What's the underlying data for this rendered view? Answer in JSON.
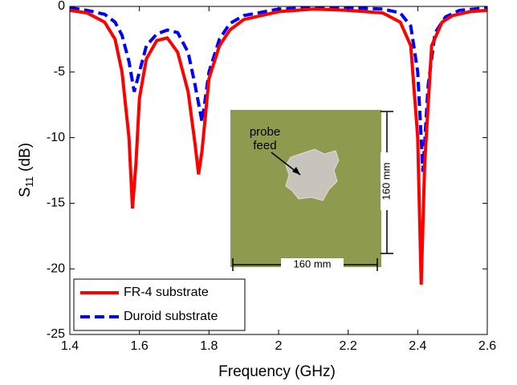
{
  "chart_data": {
    "type": "line",
    "x_label": "Frequency (GHz)",
    "y_label": [
      "S",
      "11",
      "(dB)"
    ],
    "xlim": [
      1.4,
      2.6
    ],
    "ylim": [
      -25,
      0
    ],
    "xticks": [
      1.4,
      1.6,
      1.8,
      2,
      2.2,
      2.4,
      2.6
    ],
    "yticks": [
      -25,
      -20,
      -15,
      -10,
      -5,
      0
    ],
    "legend": "lower left",
    "series": [
      {
        "name": "FR-4 substrate",
        "color": "#ff0000",
        "line_style": "solid",
        "x": [
          1.4,
          1.45,
          1.5,
          1.53,
          1.55,
          1.57,
          1.58,
          1.59,
          1.6,
          1.62,
          1.65,
          1.68,
          1.71,
          1.74,
          1.76,
          1.77,
          1.78,
          1.8,
          1.83,
          1.86,
          1.9,
          2.0,
          2.1,
          2.2,
          2.3,
          2.35,
          2.38,
          2.4,
          2.41,
          2.42,
          2.44,
          2.47,
          2.5,
          2.55,
          2.6
        ],
        "values": [
          -0.3,
          -0.5,
          -1.2,
          -2.5,
          -5,
          -10,
          -15.4,
          -12,
          -7,
          -4,
          -2.6,
          -2.4,
          -3.5,
          -6.5,
          -10.5,
          -12.8,
          -11,
          -5.5,
          -3,
          -1.8,
          -1,
          -0.4,
          -0.2,
          -0.3,
          -0.5,
          -1.2,
          -3,
          -10,
          -21.2,
          -12,
          -3,
          -1.2,
          -0.7,
          -0.4,
          -0.3
        ]
      },
      {
        "name": "Duroid substrate",
        "color": "#0000ff",
        "line_style": "dashed",
        "x": [
          1.4,
          1.45,
          1.5,
          1.53,
          1.55,
          1.57,
          1.585,
          1.6,
          1.62,
          1.65,
          1.68,
          1.71,
          1.74,
          1.76,
          1.78,
          1.8,
          1.83,
          1.86,
          1.9,
          2.0,
          2.1,
          2.2,
          2.3,
          2.35,
          2.38,
          2.4,
          2.415,
          2.43,
          2.45,
          2.48,
          2.52,
          2.6
        ],
        "values": [
          -0.1,
          -0.3,
          -0.6,
          -1.2,
          -2.2,
          -4.2,
          -6.5,
          -5,
          -3,
          -2.1,
          -1.8,
          -2,
          -3.5,
          -6,
          -8.8,
          -5,
          -2.5,
          -1.3,
          -0.7,
          -0.2,
          -0.1,
          -0.1,
          -0.2,
          -0.5,
          -1.5,
          -5,
          -12.6,
          -6,
          -2,
          -0.8,
          -0.3,
          -0.1
        ]
      }
    ],
    "inset_labels": {
      "probe_feed": [
        "probe",
        "feed"
      ],
      "height": "160 mm",
      "width": "160 mm"
    }
  }
}
